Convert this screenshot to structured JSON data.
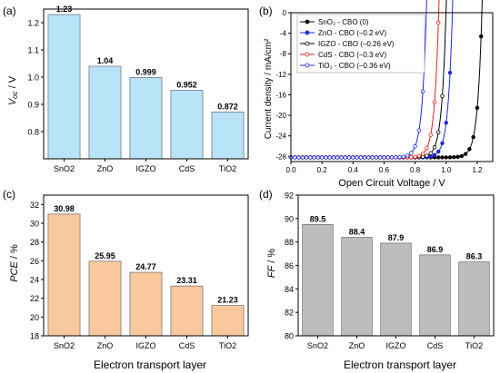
{
  "chart_data": [
    {
      "panel": "(a)",
      "type": "bar",
      "ylabel_main": "V",
      "ylabel_sub": "oc",
      "ylabel_unit": " / V",
      "ylim": [
        0.7,
        1.25
      ],
      "yticks": [
        "0.8",
        "0.9",
        "1.0",
        "1.1",
        "1.2"
      ],
      "categories": [
        "SnO2",
        "ZnO",
        "IGZO",
        "CdS",
        "TiO2"
      ],
      "values": [
        1.23,
        1.04,
        0.999,
        0.952,
        0.872
      ],
      "labels": [
        "1.23",
        "1.04",
        "0.999",
        "0.952",
        "0.872"
      ],
      "bar_color": "#b9e3f7"
    },
    {
      "panel": "(b)",
      "type": "line",
      "xlabel": "Open Circuit Voltage / V",
      "ylabel": "Current density / mA/cm²",
      "xlim": [
        0,
        1.3
      ],
      "ylim": [
        -29,
        0
      ],
      "xticks": [
        "0.0",
        "0.2",
        "0.4",
        "0.6",
        "0.8",
        "1.0",
        "1.2"
      ],
      "yticks": [
        "-28",
        "-24",
        "-20",
        "-16",
        "-12",
        "-8",
        "-4",
        "0"
      ],
      "jsc": -28.2,
      "series": [
        {
          "name": "SnO₂ - CBO (0)",
          "voc": 1.23,
          "color": "#000000",
          "marker": "filled"
        },
        {
          "name": "ZnO - CBO (–0.2 eV)",
          "voc": 1.04,
          "color": "#1f28d8",
          "marker": "filled"
        },
        {
          "name": "IGZO - CBO (–0.26 eV)",
          "voc": 0.999,
          "color": "#000000",
          "marker": "open"
        },
        {
          "name": "CdS - CBO (–0.3 eV)",
          "voc": 0.952,
          "color": "#e0201e",
          "marker": "open"
        },
        {
          "name": "TiO₂ - CBO (–0.36 eV)",
          "voc": 0.872,
          "color": "#1f28d8",
          "marker": "open"
        }
      ]
    },
    {
      "panel": "(c)",
      "type": "bar",
      "xlabel": "Electron transport layer",
      "ylabel_main": "PCE",
      "ylabel_unit": " / %",
      "ylim": [
        18,
        33
      ],
      "yticks": [
        "18",
        "20",
        "22",
        "24",
        "26",
        "28",
        "30",
        "32"
      ],
      "categories": [
        "SnO2",
        "ZnO",
        "IGZO",
        "CdS",
        "TiO2"
      ],
      "values": [
        30.98,
        25.95,
        24.77,
        23.31,
        21.23
      ],
      "labels": [
        "30.98",
        "25.95",
        "24.77",
        "23.31",
        "21.23"
      ],
      "bar_color": "#f9c99d"
    },
    {
      "panel": "(d)",
      "type": "bar",
      "xlabel": "Electron transport layer",
      "ylabel_main": "FF",
      "ylabel_unit": " / %",
      "ylim": [
        80,
        92
      ],
      "yticks": [
        "80",
        "82",
        "84",
        "86",
        "88",
        "90",
        "92"
      ],
      "categories": [
        "SnO2",
        "ZnO",
        "IGZO",
        "CdS",
        "TiO2"
      ],
      "values": [
        89.5,
        88.4,
        87.9,
        86.9,
        86.3
      ],
      "labels": [
        "89.5",
        "88.4",
        "87.9",
        "86.9",
        "86.3"
      ],
      "bar_color": "#bdbdbd"
    }
  ]
}
